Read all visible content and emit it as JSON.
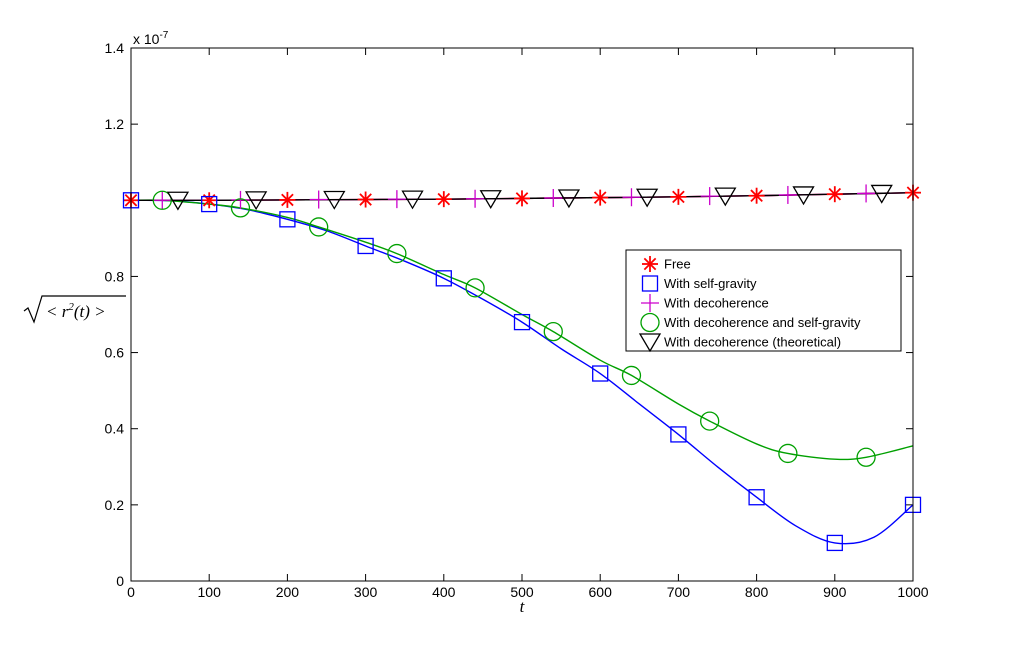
{
  "chart_data": {
    "type": "line",
    "xlabel": "t",
    "ylabel": "√<r²(t)>",
    "ylabel_parts": {
      "radicand": "< r",
      "exp": "2",
      "arg": "(t) >"
    },
    "y_multiplier": {
      "base": "x 10",
      "exp": "-7"
    },
    "xlim": [
      0,
      1000
    ],
    "ylim": [
      0,
      1.4
    ],
    "xticks": [
      0,
      100,
      200,
      300,
      400,
      500,
      600,
      700,
      800,
      900,
      1000
    ],
    "yticks": [
      0,
      0.2,
      0.4,
      0.6,
      0.8,
      1.2,
      1.4
    ],
    "grid": false,
    "legend_position": "right-middle",
    "series": [
      {
        "name": "Free",
        "marker": "asterisk",
        "color": "#ff0000",
        "line_x": [
          0,
          100,
          200,
          300,
          400,
          500,
          600,
          700,
          800,
          900,
          1000
        ],
        "line_y": [
          1.0,
          1.0,
          1.001,
          1.002,
          1.003,
          1.005,
          1.007,
          1.009,
          1.012,
          1.016,
          1.02
        ],
        "marker_x": [
          0,
          100,
          200,
          300,
          400,
          500,
          600,
          700,
          800,
          900,
          1000
        ],
        "marker_y": [
          1.0,
          1.0,
          1.001,
          1.002,
          1.003,
          1.005,
          1.007,
          1.009,
          1.012,
          1.016,
          1.02
        ]
      },
      {
        "name": "With self-gravity",
        "marker": "square",
        "color": "#0000ff",
        "line_x": [
          0,
          50,
          100,
          150,
          200,
          250,
          300,
          350,
          400,
          450,
          500,
          550,
          600,
          650,
          700,
          750,
          800,
          850,
          900,
          950,
          1000
        ],
        "line_y": [
          1.0,
          0.999,
          0.99,
          0.975,
          0.95,
          0.92,
          0.88,
          0.84,
          0.795,
          0.74,
          0.68,
          0.61,
          0.545,
          0.465,
          0.385,
          0.3,
          0.22,
          0.145,
          0.1,
          0.115,
          0.2
        ],
        "marker_x": [
          0,
          100,
          200,
          300,
          400,
          500,
          600,
          700,
          800,
          900,
          1000
        ],
        "marker_y": [
          1.0,
          0.99,
          0.95,
          0.88,
          0.795,
          0.68,
          0.545,
          0.385,
          0.22,
          0.1,
          0.2
        ]
      },
      {
        "name": "With decoherence",
        "marker": "plus",
        "color": "#cc00cc",
        "line_x": [
          0,
          100,
          200,
          300,
          400,
          500,
          600,
          700,
          800,
          900,
          1000
        ],
        "line_y": [
          1.0,
          1.0,
          1.001,
          1.002,
          1.003,
          1.005,
          1.007,
          1.009,
          1.012,
          1.016,
          1.02
        ],
        "marker_x": [
          40,
          140,
          240,
          340,
          440,
          540,
          640,
          740,
          840,
          940
        ],
        "marker_y": [
          1.0,
          1.001,
          1.002,
          1.003,
          1.004,
          1.006,
          1.008,
          1.011,
          1.014,
          1.018
        ]
      },
      {
        "name": "With decoherence and self-gravity",
        "marker": "circle",
        "color": "#00a000",
        "line_x": [
          0,
          40,
          100,
          140,
          200,
          240,
          300,
          340,
          400,
          440,
          500,
          540,
          600,
          640,
          700,
          740,
          800,
          840,
          900,
          940,
          1000
        ],
        "line_y": [
          1.0,
          1.0,
          0.99,
          0.98,
          0.955,
          0.93,
          0.89,
          0.86,
          0.805,
          0.77,
          0.7,
          0.655,
          0.58,
          0.54,
          0.465,
          0.42,
          0.36,
          0.335,
          0.32,
          0.325,
          0.355
        ],
        "marker_x": [
          40,
          140,
          240,
          340,
          440,
          540,
          640,
          740,
          840,
          940
        ],
        "marker_y": [
          1.0,
          0.98,
          0.93,
          0.86,
          0.77,
          0.655,
          0.54,
          0.42,
          0.335,
          0.325
        ]
      },
      {
        "name": "With decoherence (theoretical)",
        "marker": "triangle-down",
        "color": "#000000",
        "line_x": [
          0,
          100,
          200,
          300,
          400,
          500,
          600,
          700,
          800,
          900,
          1000
        ],
        "line_y": [
          1.0,
          1.0,
          1.001,
          1.002,
          1.003,
          1.005,
          1.007,
          1.009,
          1.012,
          1.016,
          1.02
        ],
        "marker_x": [
          60,
          160,
          260,
          360,
          460,
          560,
          660,
          760,
          860,
          960
        ],
        "marker_y": [
          1.0,
          1.001,
          1.002,
          1.003,
          1.004,
          1.006,
          1.008,
          1.011,
          1.014,
          1.018
        ]
      }
    ]
  }
}
